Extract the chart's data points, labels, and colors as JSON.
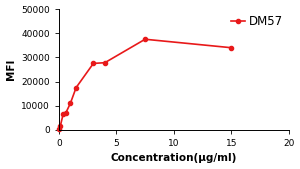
{
  "x": [
    0.04,
    0.12,
    0.37,
    0.6,
    1.0,
    1.5,
    3.0,
    4.0,
    7.5,
    15.0
  ],
  "y": [
    500,
    1500,
    6500,
    7000,
    11000,
    17500,
    27500,
    27800,
    37500,
    34000
  ],
  "line_color": "#e8191a",
  "marker": "o",
  "marker_size": 3,
  "line_width": 1.2,
  "xlabel": "Concentration(μg/ml)",
  "ylabel": "MFI",
  "xlim": [
    0,
    20
  ],
  "ylim": [
    0,
    50000
  ],
  "xticks": [
    0,
    5,
    10,
    15,
    20
  ],
  "yticks": [
    0,
    10000,
    20000,
    30000,
    40000,
    50000
  ],
  "ytick_labels": [
    "0",
    "10000",
    "20000",
    "30000",
    "40000",
    "50000"
  ],
  "legend_label": "DM57",
  "legend_marker_color": "#e8191a",
  "xlabel_fontsize": 7.5,
  "ylabel_fontsize": 7.5,
  "tick_fontsize": 6.5,
  "legend_fontsize": 8.5
}
